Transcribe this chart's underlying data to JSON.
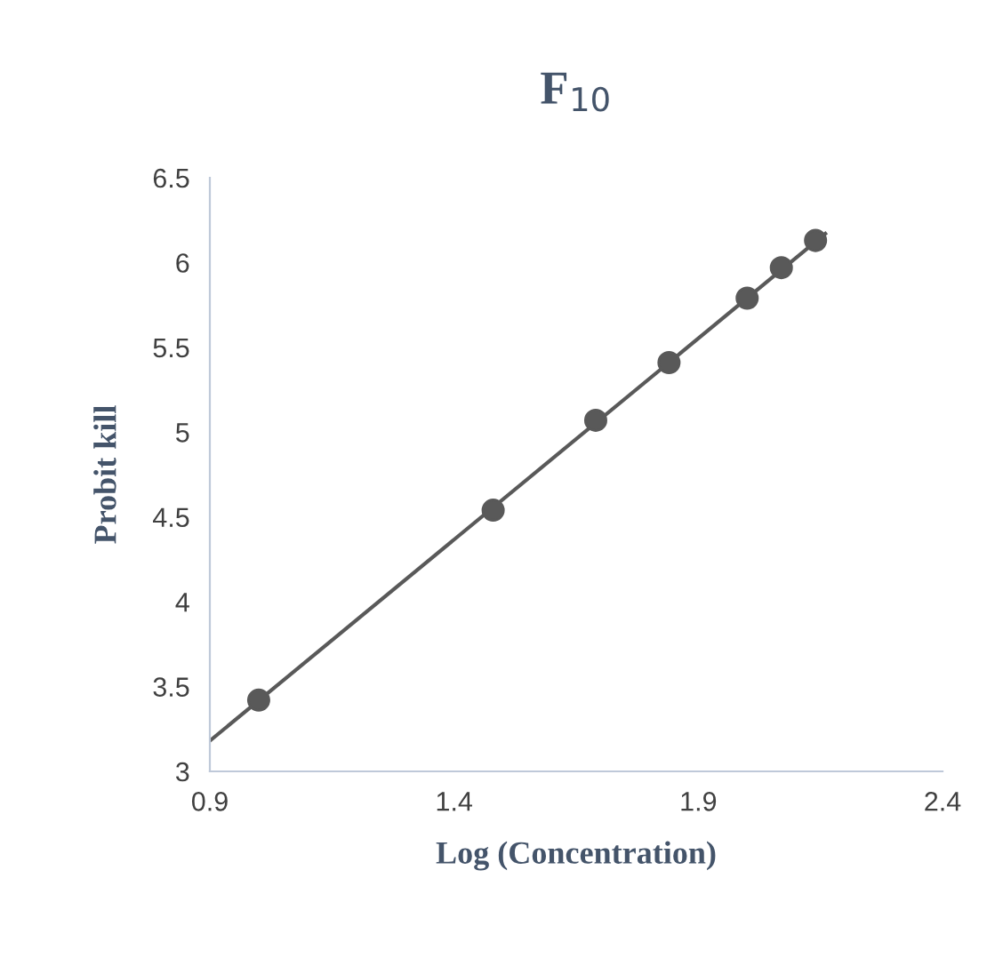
{
  "chart_data": {
    "type": "scatter",
    "title": "F$_{10}$",
    "xlabel": "Log (Concentration)",
    "ylabel": "Probit kill",
    "x": [
      1.0,
      1.48,
      1.69,
      1.84,
      2.0,
      2.07,
      2.14
    ],
    "series": [
      {
        "color": "#595959",
        "values": [
          3.42,
          4.54,
          5.07,
          5.41,
          5.79,
          5.97,
          6.13
        ],
        "marker": "circle"
      },
      {
        "type": "line",
        "color": "#595959",
        "x": [
          0.9,
          2.16
        ],
        "values": [
          3.18,
          6.17
        ],
        "line_style": "solid",
        "marker": "none"
      }
    ],
    "xlim": [
      0.9,
      2.4
    ],
    "xticks": [
      0.9,
      1.4,
      1.9,
      2.4
    ],
    "ylim": [
      3,
      6.5
    ],
    "yticks": [
      3,
      3.5,
      4,
      4.5,
      5,
      5.5,
      6,
      6.5
    ],
    "grid": false,
    "legend": false
  }
}
